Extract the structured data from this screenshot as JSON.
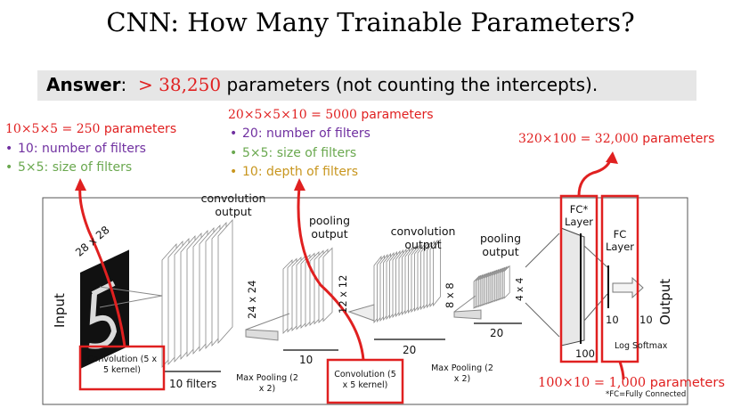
{
  "title": "CNN: How Many Trainable Parameters?",
  "answer": {
    "label": "Answer",
    "colon": ":",
    "value": "> 38,250",
    "rest": "parameters (not counting the intercepts)."
  },
  "conv1_annotation": {
    "formula": "10×5×5 = 250",
    "unit": "parameters",
    "bullets": [
      {
        "text": "10: number of filters",
        "color": "#7030a0"
      },
      {
        "text": "5×5: size of filters",
        "color": "#6aa84f"
      }
    ]
  },
  "conv2_annotation": {
    "formula": "20×5×5×10 = 5000",
    "unit": "parameters",
    "bullets": [
      {
        "text": "20: number of filters",
        "color": "#7030a0"
      },
      {
        "text": "5×5: size of filters",
        "color": "#6aa84f"
      },
      {
        "text": "10: depth of filters",
        "color": "#c8961e"
      }
    ]
  },
  "fc1_annotation": {
    "formula": "320×100 = 32,000",
    "unit": "parameters"
  },
  "fc2_annotation": {
    "formula": "100×10 = 1,000",
    "unit": "parameters"
  },
  "diagram": {
    "input_label": "Input",
    "input_size": "28 x 28",
    "conv_output_1": "convolution output",
    "dim_24": "24 x 24",
    "filters_10": "10 filters",
    "conv_kernel_1": "Convolution (5 x 5 kernel)",
    "max_pool_1": "Max Pooling (2 x 2)",
    "pool_output_1": "pooling output",
    "dim_12": "12 x 12",
    "depth_10": "10",
    "conv_kernel_2": "Convolution (5 x 5 kernel)",
    "conv_output_2": "convolution output",
    "dim_8": "8 x 8",
    "depth_20a": "20",
    "max_pool_2": "Max Pooling (2 x 2)",
    "pool_output_2": "pooling output",
    "dim_4": "4 x 4",
    "depth_20b": "20",
    "fc_star_layer": "FC* Layer",
    "fc_layer": "FC Layer",
    "n100": "100",
    "n10a": "10",
    "n10b": "10",
    "log_softmax": "Log Softmax",
    "output_label": "Output",
    "footnote": "*FC=Fully Connected"
  }
}
